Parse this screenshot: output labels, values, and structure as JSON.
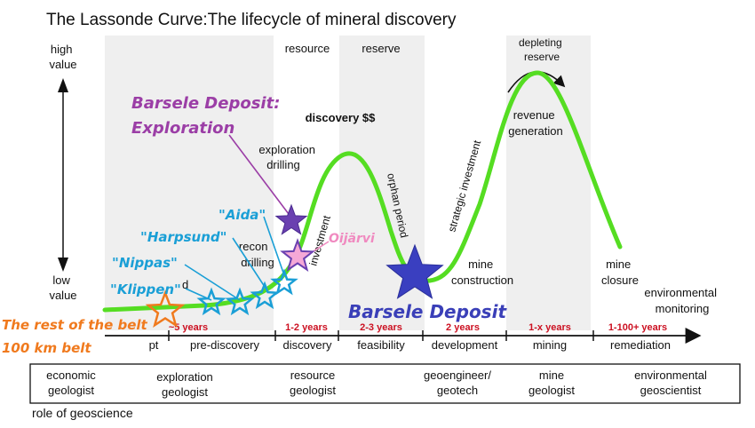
{
  "title": "The Lassonde Curve:The lifecycle of mineral discovery",
  "value_axis": {
    "high": [
      "high",
      "value"
    ],
    "low": [
      "low",
      "value"
    ]
  },
  "top_labels": {
    "resource": "resource",
    "reserve": "reserve",
    "depleting_reserve": [
      "depleting",
      "reserve"
    ],
    "discovery_money": "discovery $$",
    "revenue_generation": [
      "revenue",
      "generation"
    ],
    "exploration_drilling": [
      "exploration",
      "drilling"
    ],
    "recon_drilling": [
      "recon",
      "drilling"
    ],
    "orphan_period": "orphan period",
    "strategic_investment": "strategic investment",
    "mine_construction": [
      "mine",
      "construction"
    ],
    "mine_closure": [
      "mine",
      "closure"
    ],
    "environmental_monitoring": [
      "environmental",
      "monitoring"
    ],
    "investment_partial": "investment",
    "d_partial": "d"
  },
  "durations": [
    {
      "text": "~5 years",
      "color": "#cc1122"
    },
    {
      "text": "1-2 years",
      "color": "#cc1122"
    },
    {
      "text": "2-3 years",
      "color": "#cc1122"
    },
    {
      "text": "2 years",
      "color": "#cc1122"
    },
    {
      "text": "1-x years",
      "color": "#cc1122"
    },
    {
      "text": "1-100+ years",
      "color": "#cc1122"
    }
  ],
  "phases": [
    "pt",
    "pre-discovery",
    "discovery",
    "feasibility",
    "development",
    "mining",
    "remediation"
  ],
  "roles": [
    [
      "economic",
      "geologist"
    ],
    [
      "exploration",
      "geologist"
    ],
    [
      "resource",
      "geologist"
    ],
    [
      "geoengineer/",
      "geotech"
    ],
    [
      "mine",
      "geologist"
    ],
    [
      "environmental",
      "geoscientist"
    ]
  ],
  "role_caption": "role of geoscience",
  "annotations": {
    "barsele_exploration": {
      "lines": [
        "Barsele Deposit:",
        "Exploration"
      ],
      "color": "#9b3ea6"
    },
    "barsele_deposit": {
      "text": "Barsele Deposit",
      "color": "#3a3fb8"
    },
    "aida": {
      "text": "\"Aida\"",
      "color": "#1a9fd6"
    },
    "harpsund": {
      "text": "\"Harpsund\"",
      "color": "#1a9fd6"
    },
    "nippas": {
      "text": "\"Nippas\"",
      "color": "#1a9fd6"
    },
    "klippen": {
      "text": "\"Klippen\"",
      "color": "#1a9fd6"
    },
    "oijarvi": {
      "text": "Oijärvi",
      "color": "#f08ac0"
    },
    "rest_of_belt": {
      "lines": [
        "The rest of the belt",
        "100 km belt"
      ],
      "color": "#f07a1e"
    }
  },
  "colors": {
    "curve": "#55dd22",
    "band": "#efefef",
    "blue_star": "#1a9fd6",
    "purple_star": "#6a40b0",
    "pink_star": "#f5a8d6",
    "orange_star": "#f07a1e",
    "navy_star": "#3a3fc0"
  }
}
